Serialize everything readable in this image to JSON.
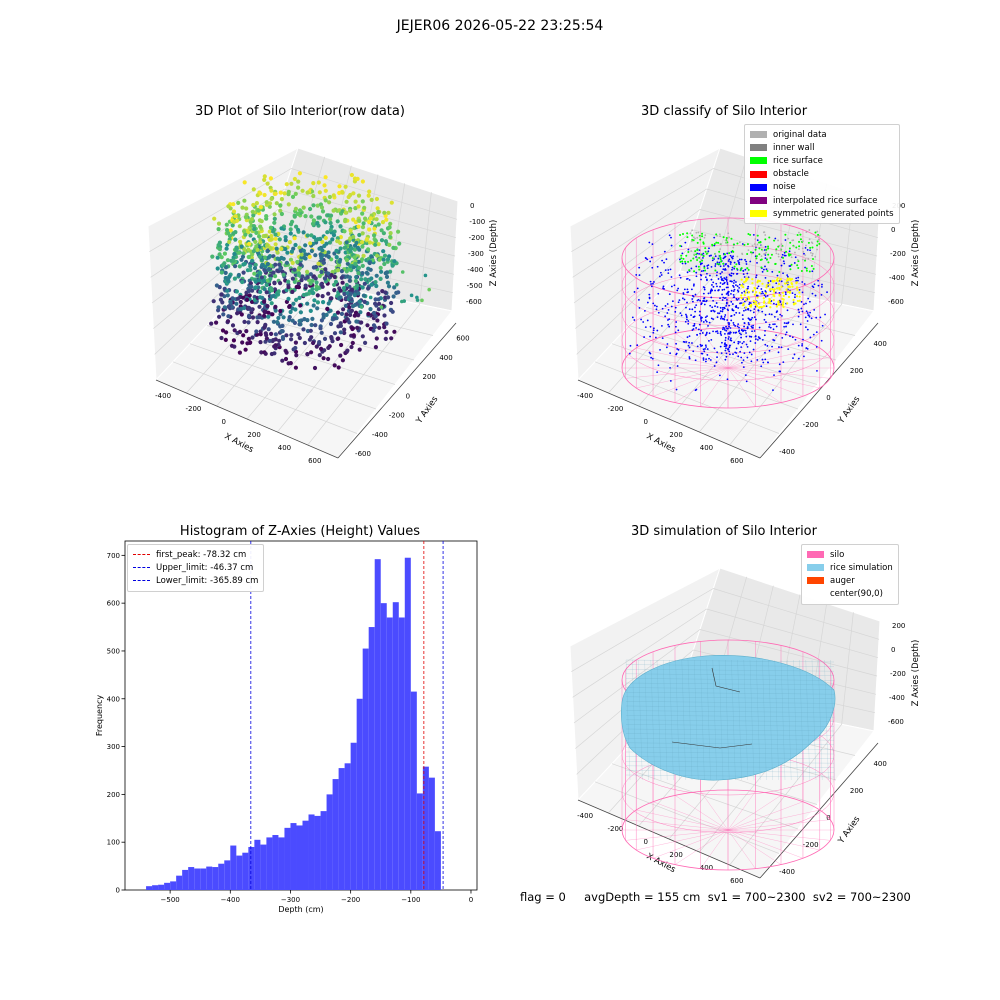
{
  "suptitle": "JEJER06 2026-05-22 23:25:54",
  "footer": "flag = 0     avgDepth = 155 cm  sv1 = 700~2300  sv2 = 700~2300",
  "colors": {
    "hist_bar": "#4b4bff",
    "first_peak": "#e00000",
    "limit": "#0000e0",
    "silo": "#ff69b4",
    "rice_simulation": "#87ceeb",
    "auger": "#ff4500",
    "original_data": "#b0b0b0",
    "inner_wall": "#808080",
    "rice_surface": "#00ff00",
    "obstacle": "#ff0000",
    "noise": "#0000ff",
    "interpolated_rice_surface": "#800080",
    "symmetric_generated_points": "#ffff00"
  },
  "chart_data": [
    {
      "type": "scatter",
      "title": "3D Plot of Silo Interior(row data)",
      "xlabel": "X Axies",
      "ylabel": "Y Axies",
      "zlabel": "Z Axies (Depth)",
      "xticks": [
        "-400",
        "-200",
        "0",
        "200",
        "400",
        "600"
      ],
      "yticks": [
        "-600",
        "-400",
        "-200",
        "0",
        "200",
        "400",
        "600"
      ],
      "zticks": [
        "0",
        "-100",
        "-200",
        "-300",
        "-400",
        "-500",
        "-600"
      ],
      "xlim": [
        -450,
        650
      ],
      "ylim": [
        -650,
        650
      ],
      "zlim": [
        -650,
        20
      ],
      "colormap": "viridis"
    },
    {
      "type": "scatter",
      "title": "3D classify of Silo Interior",
      "xlabel": "X Axies",
      "ylabel": "Y Axies",
      "zlabel": "Z Axies (Depth)",
      "xticks": [
        "-400",
        "-200",
        "0",
        "200",
        "400",
        "600"
      ],
      "yticks": [
        "-400",
        "-200",
        "0",
        "200",
        "400"
      ],
      "zticks": [
        "200",
        "0",
        "-200",
        "-400",
        "-600"
      ],
      "xlim": [
        -450,
        650
      ],
      "ylim": [
        -450,
        450
      ],
      "zlim": [
        -650,
        200
      ],
      "legend": [
        "original data",
        "inner wall",
        "rice surface",
        "obstacle",
        "noise",
        "interpolated rice surface",
        "symmetric generated points"
      ]
    },
    {
      "type": "bar",
      "title": "Histogram of Z-Axies (Height) Values",
      "xlabel": "Depth (cm)",
      "ylabel": "Frequency",
      "xlim": [
        -575,
        10
      ],
      "ylim": [
        0,
        730
      ],
      "xticks": [
        -500,
        -400,
        -300,
        -200,
        -100,
        0
      ],
      "xtick_labels": [
        "−500",
        "−400",
        "−300",
        "−200",
        "−100",
        "0"
      ],
      "yticks": [
        0,
        100,
        200,
        300,
        400,
        500,
        600,
        700
      ],
      "bin_width": 10,
      "bin_start": -540,
      "values": [
        8,
        10,
        11,
        15,
        18,
        30,
        42,
        48,
        45,
        45,
        49,
        48,
        55,
        62,
        93,
        72,
        78,
        90,
        105,
        95,
        110,
        115,
        110,
        130,
        140,
        135,
        145,
        158,
        155,
        165,
        200,
        232,
        255,
        265,
        308,
        400,
        505,
        550,
        692,
        600,
        570,
        602,
        570,
        695,
        415,
        202,
        258,
        235,
        123
      ],
      "vlines": [
        {
          "label": "first_peak: -78.32 cm",
          "x": -78.32,
          "color": "#e00000"
        },
        {
          "label": "Upper_limit: -46.37 cm",
          "x": -46.37,
          "color": "#0000e0"
        },
        {
          "label": "Lower_limit: -365.89 cm",
          "x": -365.89,
          "color": "#0000e0"
        }
      ],
      "legend_position": "top-left"
    },
    {
      "type": "scatter",
      "title": "3D simulation of Silo Interior",
      "xlabel": "X Axies",
      "ylabel": "Y Axies",
      "zlabel": "Z Axies (Depth)",
      "xticks": [
        "-400",
        "-200",
        "0",
        "200",
        "400",
        "600"
      ],
      "yticks": [
        "-400",
        "-200",
        "0",
        "200",
        "400"
      ],
      "zticks": [
        "200",
        "0",
        "-200",
        "-400",
        "-600"
      ],
      "xlim": [
        -450,
        650
      ],
      "ylim": [
        -450,
        450
      ],
      "zlim": [
        -650,
        200
      ],
      "legend": [
        "silo",
        "rice simulation",
        "auger",
        "center(90,0)"
      ]
    }
  ]
}
